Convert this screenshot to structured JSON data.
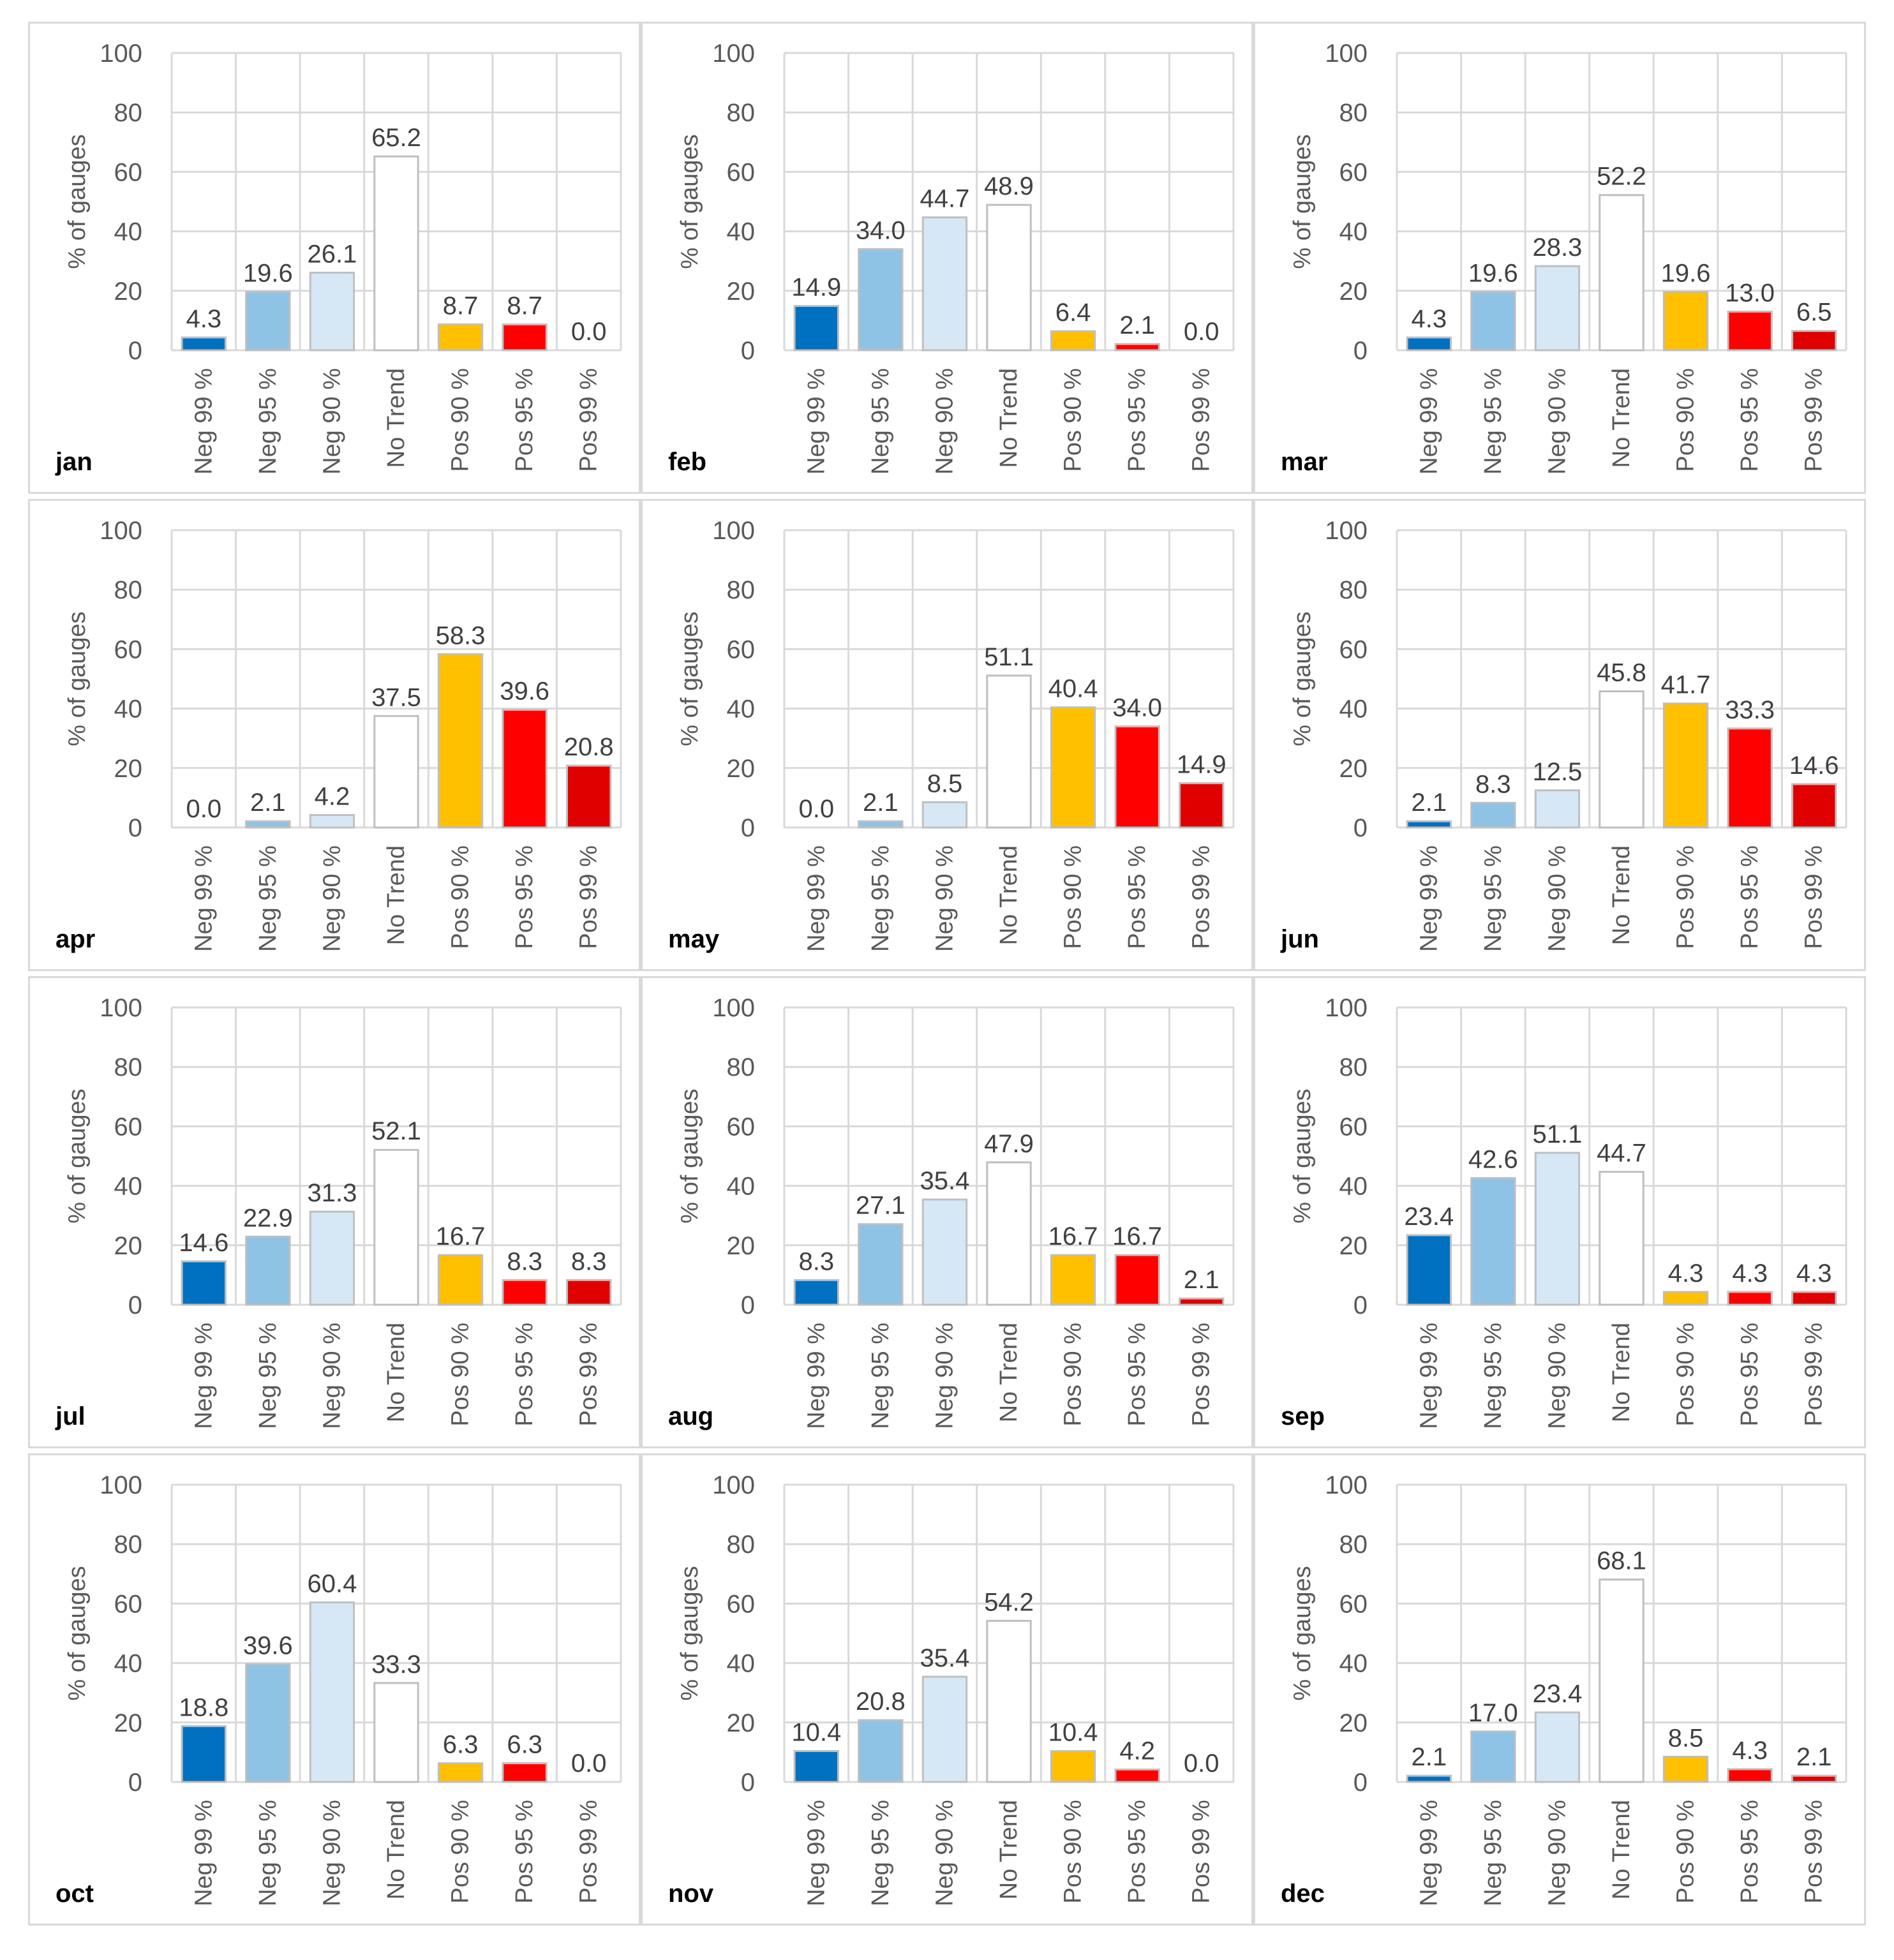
{
  "chart_data": {
    "type": "bar",
    "ylabel": "% of gauges",
    "ylim": [
      0,
      100
    ],
    "yticks": [
      "0",
      "20",
      "40",
      "60",
      "80",
      "100"
    ],
    "grid": true,
    "categories": [
      "Neg 99 %",
      "Neg 95 %",
      "Neg 90 %",
      "No Trend",
      "Pos 90 %",
      "Pos 95 %",
      "Pos 99 %"
    ],
    "category_colors": [
      "#0070c0",
      "#8fc3e6",
      "#d6e8f6",
      "#ffffff",
      "#ffc000",
      "#ff0000",
      "#e00000"
    ],
    "panels": [
      {
        "month": "jan",
        "values": [
          4.3,
          19.6,
          26.1,
          65.2,
          8.7,
          8.7,
          0.0
        ]
      },
      {
        "month": "feb",
        "values": [
          14.9,
          34.0,
          44.7,
          48.9,
          6.4,
          2.1,
          0.0
        ]
      },
      {
        "month": "mar",
        "values": [
          4.3,
          19.6,
          28.3,
          52.2,
          19.6,
          13.0,
          6.5
        ]
      },
      {
        "month": "apr",
        "values": [
          0.0,
          2.1,
          4.2,
          37.5,
          58.3,
          39.6,
          20.8
        ]
      },
      {
        "month": "may",
        "values": [
          0.0,
          2.1,
          8.5,
          51.1,
          40.4,
          34.0,
          14.9
        ]
      },
      {
        "month": "jun",
        "values": [
          2.1,
          8.3,
          12.5,
          45.8,
          41.7,
          33.3,
          14.6
        ]
      },
      {
        "month": "jul",
        "values": [
          14.6,
          22.9,
          31.3,
          52.1,
          16.7,
          8.3,
          8.3
        ]
      },
      {
        "month": "aug",
        "values": [
          8.3,
          27.1,
          35.4,
          47.9,
          16.7,
          16.7,
          2.1
        ]
      },
      {
        "month": "sep",
        "values": [
          23.4,
          42.6,
          51.1,
          44.7,
          4.3,
          4.3,
          4.3
        ]
      },
      {
        "month": "oct",
        "values": [
          18.8,
          39.6,
          60.4,
          33.3,
          6.3,
          6.3,
          0.0
        ]
      },
      {
        "month": "nov",
        "values": [
          10.4,
          20.8,
          35.4,
          54.2,
          10.4,
          4.2,
          0.0
        ]
      },
      {
        "month": "dec",
        "values": [
          2.1,
          17.0,
          23.4,
          68.1,
          8.5,
          4.3,
          2.1
        ]
      }
    ]
  }
}
